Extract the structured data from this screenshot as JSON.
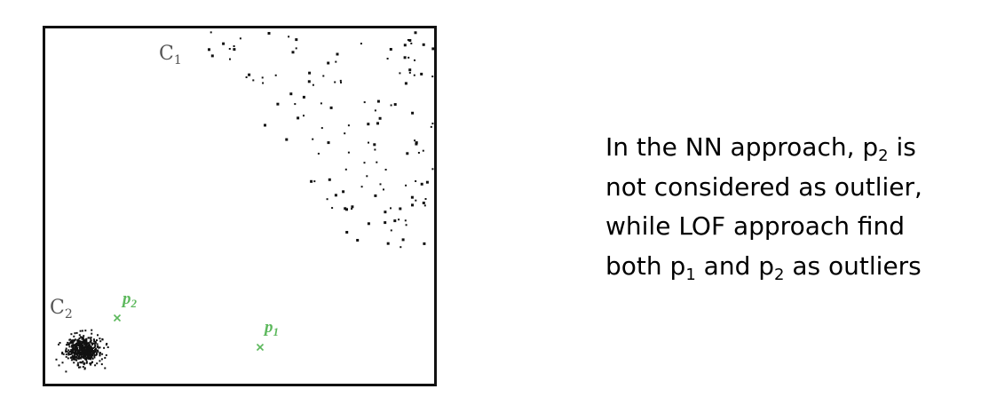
{
  "figure": {
    "clusters": [
      {
        "id": "C1",
        "letter": "C",
        "subscript": "1",
        "label_color": "#555555"
      },
      {
        "id": "C2",
        "letter": "C",
        "subscript": "2",
        "label_color": "#555555"
      }
    ],
    "outliers": [
      {
        "id": "p1",
        "letter": "p",
        "subscript": "1",
        "color": "#5cb85c"
      },
      {
        "id": "p2",
        "letter": "p",
        "subscript": "2",
        "color": "#5cb85c"
      }
    ]
  },
  "caption": {
    "lines": [
      {
        "text": "In the NN approach, p",
        "sub": "2",
        "tail": " is"
      },
      {
        "text": "not considered as outlier,",
        "sub": "",
        "tail": ""
      },
      {
        "text": "while LOF approach find",
        "sub": "",
        "tail": ""
      },
      {
        "text": "both p",
        "sub": "1",
        "tail": " and p",
        "sub2": "2",
        "tail2": " as outliers"
      }
    ]
  },
  "colors": {
    "frame": "#111111",
    "points": "#111111",
    "outliers": "#5cb85c"
  }
}
